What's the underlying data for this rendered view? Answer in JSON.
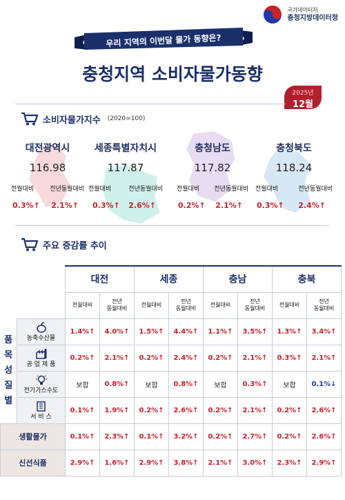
{
  "org": {
    "line1": "국가데이터처",
    "line2": "충청지방데이터청"
  },
  "ribbon": "우리 지역의 이번달 물가 동향은?",
  "title": "충청지역 소비자물가동향",
  "date": {
    "year": "2025년",
    "month": "12월"
  },
  "section1": {
    "title": "소비자물가지수",
    "base": "(2020=100)"
  },
  "labels": {
    "mom": "전월대비",
    "yoy": "전년동월대비",
    "yoy_l1": "전년",
    "yoy_l2": "동월대비"
  },
  "regions": [
    {
      "name": "대전광역시",
      "index": "116.98",
      "mom": "0.3%↑",
      "yoy": "2.1%↑"
    },
    {
      "name": "세종특별자치시",
      "index": "117.87",
      "mom": "0.3%↑",
      "yoy": "2.6%↑"
    },
    {
      "name": "충청남도",
      "index": "117.82",
      "mom": "0.2%↑",
      "yoy": "2.1%↑"
    },
    {
      "name": "충청북도",
      "index": "118.24",
      "mom": "0.3%↑",
      "yoy": "2.4%↑"
    }
  ],
  "section2": {
    "title": "주요 증감률 추이"
  },
  "cities": [
    "대전",
    "세종",
    "충남",
    "충북"
  ],
  "side_label": [
    "품",
    "목",
    "성",
    "질",
    "별"
  ],
  "rows": [
    {
      "name": "농축수산물",
      "values": [
        "1.4%↑",
        "4.0%↑",
        "1.5%↑",
        "4.4%↑",
        "1.1%↑",
        "3.5%↑",
        "1.3%↑",
        "3.4%↑"
      ]
    },
    {
      "name": "공 업 제 품",
      "values": [
        "0.2%↑",
        "2.1%↑",
        "0.2%↑",
        "2.4%↑",
        "0.2%↑",
        "2.1%↑",
        "0.3%↑",
        "2.1%↑"
      ]
    },
    {
      "name": "전기가스수도",
      "values": [
        "보합",
        "0.8%↑",
        "보합",
        "0.8%↑",
        "보합",
        "0.3%↑",
        "보합",
        "0.1%↓"
      ]
    },
    {
      "name": "서 비 스",
      "values": [
        "0.1%↑",
        "1.9%↑",
        "0.2%↑",
        "2.6%↑",
        "0.2%↑",
        "2.1%↑",
        "0.2%↑",
        "2.6%↑"
      ]
    },
    {
      "name": "생활물가",
      "values": [
        "0.1%↑",
        "2.3%↑",
        "0.1%↑",
        "3.2%↑",
        "0.2%↑",
        "2.7%↑",
        "0.2%↑",
        "2.6%↑"
      ]
    },
    {
      "name": "신선식품",
      "values": [
        "2.9%↑",
        "1.6%↑",
        "2.9%↑",
        "3.8%↑",
        "2.1%↑",
        "3.0%↑",
        "2.3%↑",
        "2.9%↑"
      ]
    }
  ],
  "colors": {
    "navy": "#1b2f6b",
    "red": "#c8222a",
    "blue": "#1f3aa8",
    "badge": "#b21f2d"
  }
}
